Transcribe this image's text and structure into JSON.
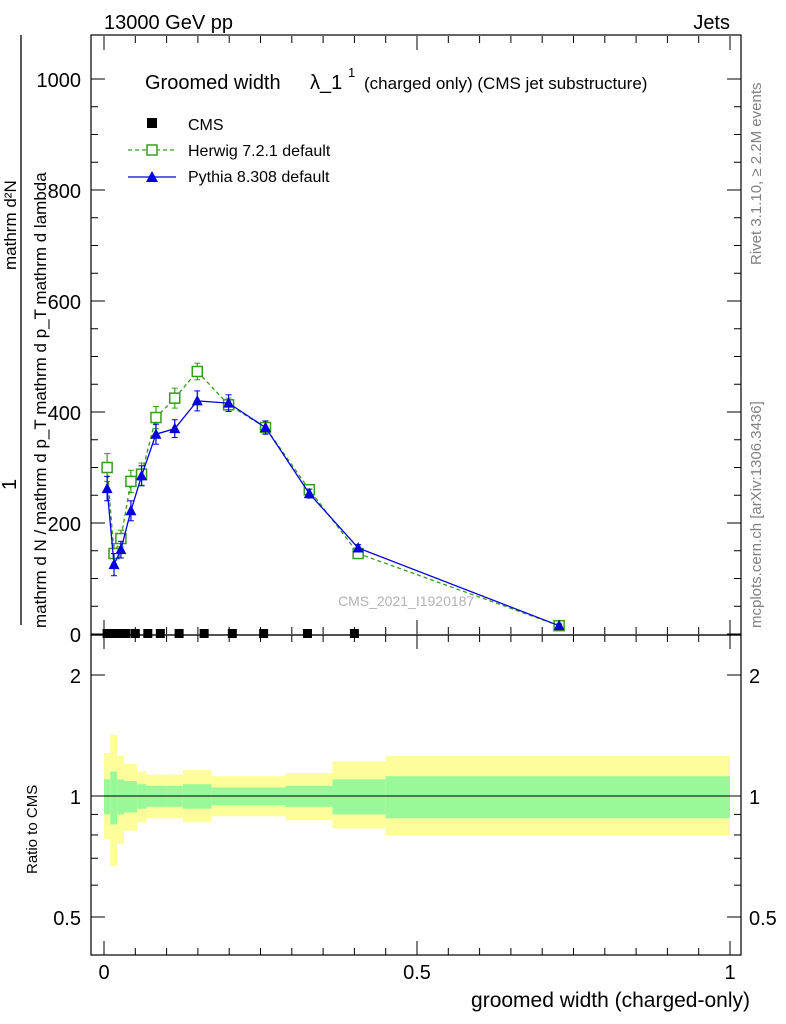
{
  "header": {
    "left": "13000 GeV pp",
    "right": "Jets"
  },
  "side_labels": {
    "rivet": "Rivet 3.1.10, ≥ 2.2M events",
    "mcplots": "mcplots.cern.ch [arXiv:1306.3436]"
  },
  "watermark": "CMS_2021_I1920187",
  "chart_data": [
    {
      "type": "line",
      "title_main": "Groomed width",
      "title_symbol": "λ_1",
      "title_sup": "1",
      "title_rest": "(charged only) (CMS jet substructure)",
      "ylabel_numerator": "1",
      "ylabel_denominator": "mathrm d N / mathrm d p_T mathrm d p_T mathrm d lambda",
      "ylabel_top": "mathrm d²N",
      "ylabel_mid": "mathrm d p_T mathrm d lambda",
      "xlim": [
        0,
        1
      ],
      "ylim": [
        0,
        1000
      ],
      "yticks": [
        "0",
        "200",
        "400",
        "600",
        "800",
        "1000"
      ],
      "legend_position": "top-left",
      "series": [
        {
          "name": "CMS",
          "marker": "square",
          "color": "#000000",
          "x": [
            0.005,
            0.015,
            0.025,
            0.035,
            0.05,
            0.07,
            0.09,
            0.12,
            0.16,
            0.205,
            0.255,
            0.325,
            0.4
          ],
          "y": [
            0,
            0,
            0,
            0,
            0,
            0,
            0,
            0,
            0,
            0,
            0,
            0,
            0
          ]
        },
        {
          "name": "Herwig 7.2.1 default",
          "marker": "open-square",
          "line": "dashed",
          "color": "#3a9a1e",
          "x": [
            0.005,
            0.016,
            0.027,
            0.043,
            0.06,
            0.083,
            0.113,
            0.149,
            0.199,
            0.258,
            0.328,
            0.406,
            0.727
          ],
          "y": [
            300,
            145,
            172,
            275,
            288,
            390,
            425,
            473,
            413,
            372,
            260,
            145,
            15
          ],
          "err": [
            25,
            18,
            15,
            20,
            20,
            20,
            18,
            15,
            12,
            10,
            8,
            7,
            3
          ]
        },
        {
          "name": "Pythia 8.308 default",
          "marker": "triangle",
          "line": "solid",
          "color": "#0000dd",
          "x": [
            0.005,
            0.016,
            0.027,
            0.043,
            0.06,
            0.083,
            0.113,
            0.149,
            0.199,
            0.258,
            0.328,
            0.406,
            0.727
          ],
          "y": [
            262,
            125,
            152,
            222,
            285,
            360,
            370,
            420,
            416,
            372,
            253,
            155,
            15
          ],
          "err": [
            22,
            20,
            15,
            18,
            18,
            18,
            16,
            18,
            15,
            12,
            8,
            6,
            3
          ]
        }
      ]
    },
    {
      "type": "area",
      "ylabel": "Ratio to CMS",
      "xlabel": "groomed width (charged-only)",
      "xlim": [
        0,
        1
      ],
      "ylim": [
        0.4,
        2.3
      ],
      "yscale": "log",
      "yticks": [
        "0.5",
        "1",
        "2"
      ],
      "xticks": [
        "0",
        "0.5",
        "1"
      ],
      "band_colors": {
        "inner": "#99f899",
        "outer": "#fdfd99"
      },
      "bins": [
        {
          "x0": 0.0,
          "x1": 0.01,
          "inner_lo": 0.9,
          "inner_hi": 1.1,
          "outer_lo": 0.78,
          "outer_hi": 1.28
        },
        {
          "x0": 0.01,
          "x1": 0.021,
          "inner_lo": 0.85,
          "inner_hi": 1.15,
          "outer_lo": 0.67,
          "outer_hi": 1.42
        },
        {
          "x0": 0.021,
          "x1": 0.032,
          "inner_lo": 0.9,
          "inner_hi": 1.1,
          "outer_lo": 0.76,
          "outer_hi": 1.26
        },
        {
          "x0": 0.032,
          "x1": 0.053,
          "inner_lo": 0.91,
          "inner_hi": 1.09,
          "outer_lo": 0.82,
          "outer_hi": 1.2
        },
        {
          "x0": 0.053,
          "x1": 0.068,
          "inner_lo": 0.93,
          "inner_hi": 1.07,
          "outer_lo": 0.86,
          "outer_hi": 1.15
        },
        {
          "x0": 0.068,
          "x1": 0.1,
          "inner_lo": 0.94,
          "inner_hi": 1.06,
          "outer_lo": 0.88,
          "outer_hi": 1.13
        },
        {
          "x0": 0.1,
          "x1": 0.126,
          "inner_lo": 0.94,
          "inner_hi": 1.06,
          "outer_lo": 0.88,
          "outer_hi": 1.13
        },
        {
          "x0": 0.126,
          "x1": 0.172,
          "inner_lo": 0.93,
          "inner_hi": 1.07,
          "outer_lo": 0.86,
          "outer_hi": 1.16
        },
        {
          "x0": 0.172,
          "x1": 0.226,
          "inner_lo": 0.95,
          "inner_hi": 1.05,
          "outer_lo": 0.89,
          "outer_hi": 1.12
        },
        {
          "x0": 0.226,
          "x1": 0.29,
          "inner_lo": 0.95,
          "inner_hi": 1.05,
          "outer_lo": 0.89,
          "outer_hi": 1.12
        },
        {
          "x0": 0.29,
          "x1": 0.365,
          "inner_lo": 0.94,
          "inner_hi": 1.06,
          "outer_lo": 0.87,
          "outer_hi": 1.14
        },
        {
          "x0": 0.365,
          "x1": 0.45,
          "inner_lo": 0.9,
          "inner_hi": 1.1,
          "outer_lo": 0.83,
          "outer_hi": 1.22
        },
        {
          "x0": 0.45,
          "x1": 1.0,
          "inner_lo": 0.88,
          "inner_hi": 1.12,
          "outer_lo": 0.8,
          "outer_hi": 1.26
        }
      ]
    }
  ]
}
